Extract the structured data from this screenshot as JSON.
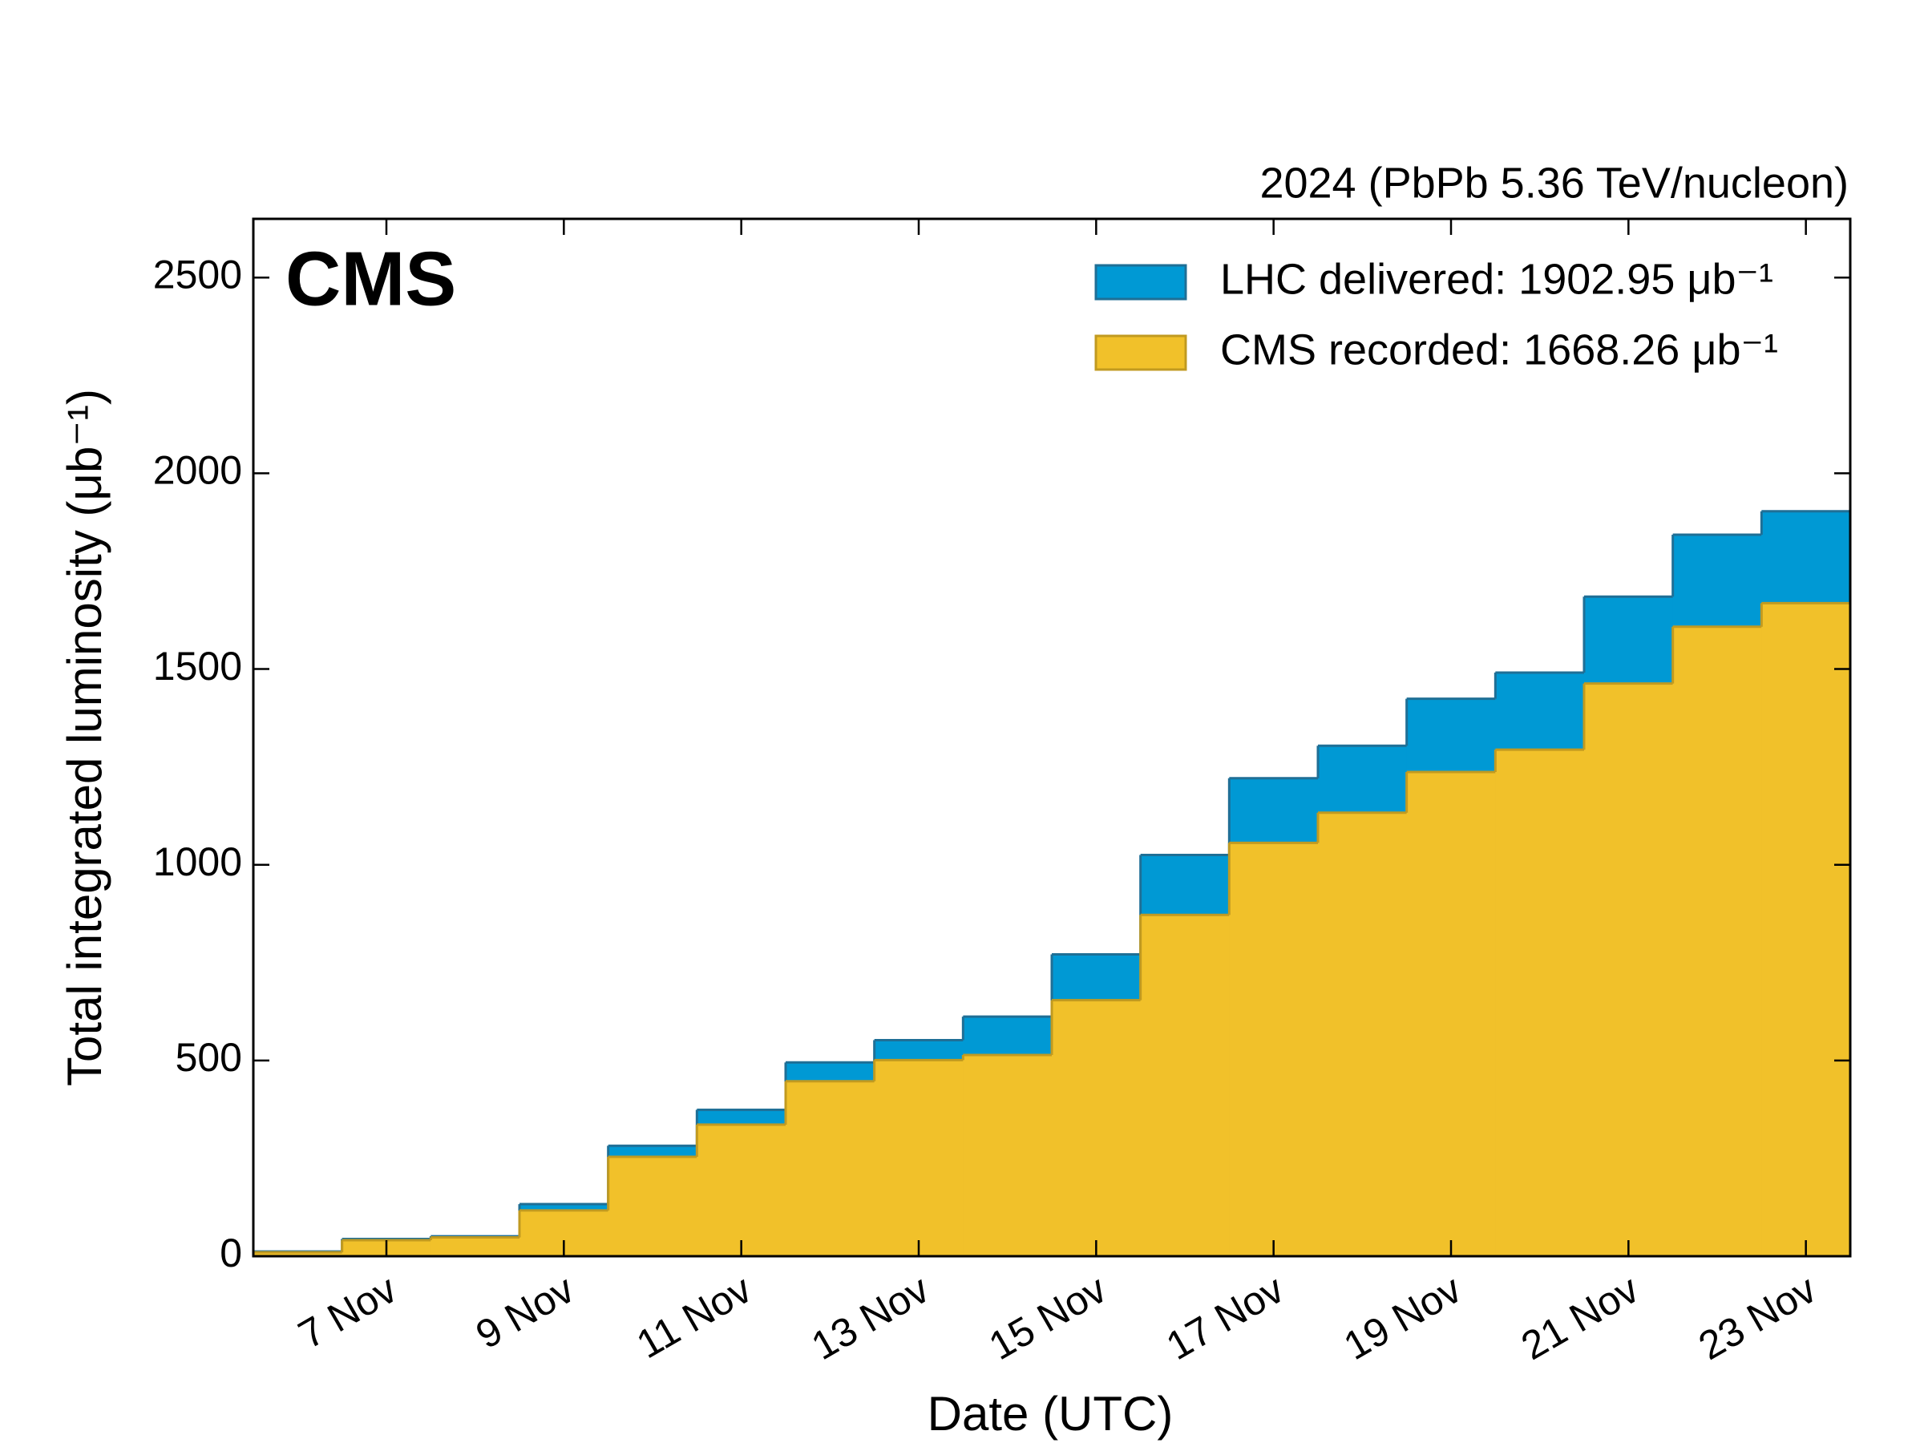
{
  "chart_data": {
    "type": "step",
    "title": "CMS",
    "subtitle": "2024 (PbPb 5.36 TeV/nucleon)",
    "xlabel": "Date (UTC)",
    "ylabel": "Total integrated luminosity (μb⁻¹)",
    "x": [
      6,
      7,
      8,
      9,
      10,
      11,
      12,
      13,
      14,
      15,
      16,
      17,
      18,
      19,
      20,
      21,
      22,
      23
    ],
    "series": [
      {
        "name": "LHC delivered: 1902.95 μb⁻¹",
        "color": "#0099d4",
        "edge": "#1f6f96",
        "values": [
          12,
          44,
          51,
          133,
          282,
          374,
          495,
          552,
          612,
          771,
          1025,
          1221,
          1304,
          1424,
          1491,
          1685,
          1843,
          1902.95
        ]
      },
      {
        "name": "CMS recorded: 1668.26 μb⁻¹",
        "color": "#f1c12a",
        "edge": "#c19a20",
        "values": [
          10,
          41,
          48,
          117,
          254,
          336,
          447,
          501,
          514,
          654,
          872,
          1056,
          1133,
          1237,
          1294,
          1463,
          1608,
          1668.26
        ]
      }
    ],
    "xlim": [
      5.5,
      23.5
    ],
    "xticks": [
      {
        "value": 7,
        "label": "7 Nov"
      },
      {
        "value": 9,
        "label": "9 Nov"
      },
      {
        "value": 11,
        "label": "11 Nov"
      },
      {
        "value": 13,
        "label": "13 Nov"
      },
      {
        "value": 15,
        "label": "15 Nov"
      },
      {
        "value": 17,
        "label": "17 Nov"
      },
      {
        "value": 19,
        "label": "19 Nov"
      },
      {
        "value": 21,
        "label": "21 Nov"
      },
      {
        "value": 23,
        "label": "23 Nov"
      }
    ],
    "ylim": [
      0,
      2650
    ],
    "yticks": [
      0,
      500,
      1000,
      1500,
      2000,
      2500
    ],
    "legend": "upper right",
    "grid": false
  }
}
